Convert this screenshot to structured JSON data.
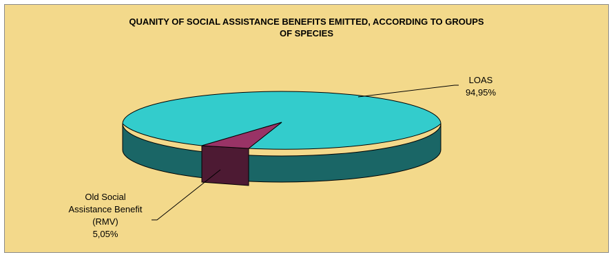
{
  "chart_data": {
    "type": "pie",
    "style": "3d-exploded-flat",
    "title_lines": [
      "QUANITY OF SOCIAL ASSISTANCE BENEFITS EMITTED, ACCORDING TO GROUPS",
      "OF SPECIES"
    ],
    "slices": [
      {
        "label_lines": [
          "LOAS"
        ],
        "percent_label": "94,95%",
        "value": 94.95,
        "top_color": "#33cccc",
        "side_color": "#1a6666"
      },
      {
        "label_lines": [
          "Old Social",
          "Assistance Benefit",
          "(RMV)"
        ],
        "percent_label": "5,05%",
        "value": 5.05,
        "top_color": "#993366",
        "side_color": "#4d1a33"
      }
    ],
    "background_color": "#f3d98b"
  }
}
